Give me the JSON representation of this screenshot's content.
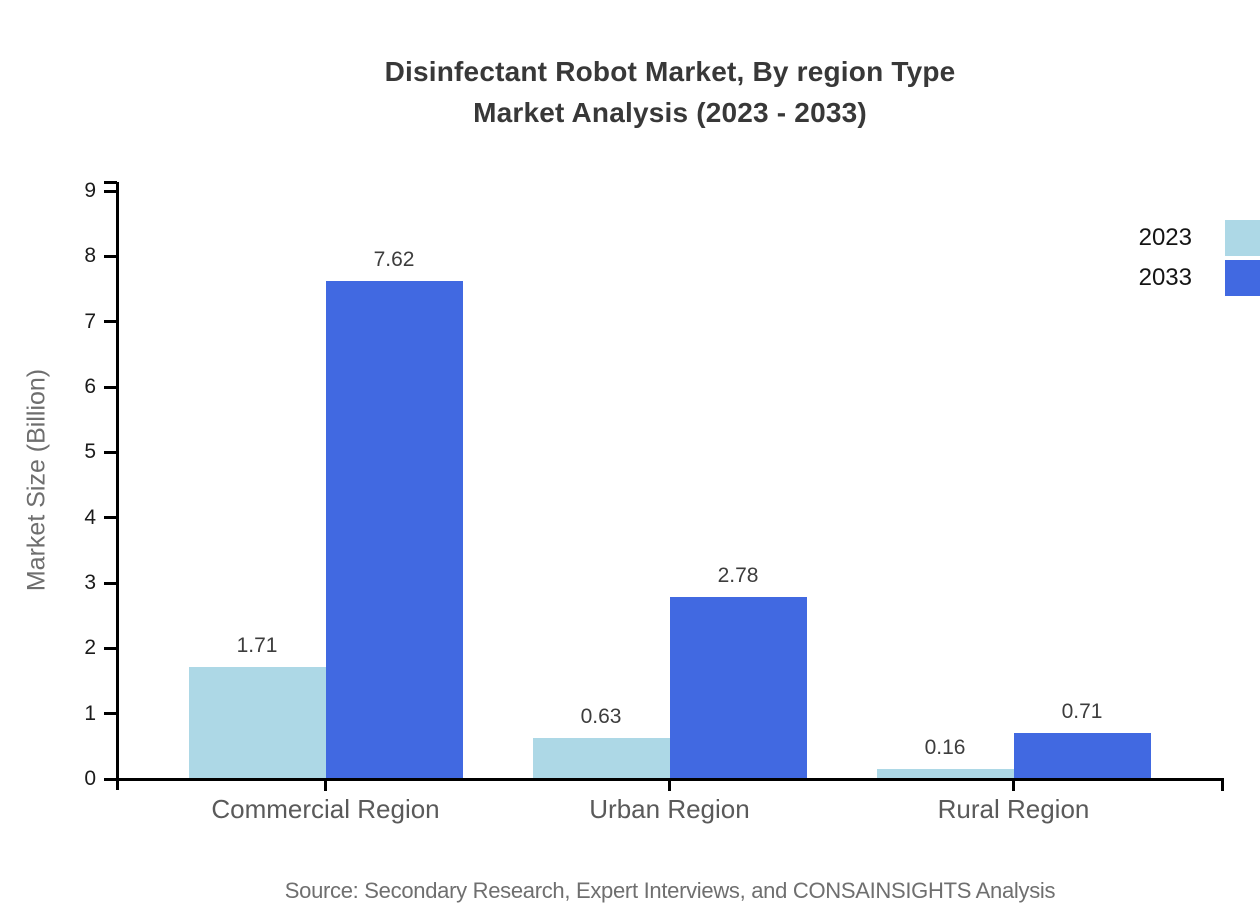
{
  "title": {
    "line1": "Disinfectant Robot Market, By region Type",
    "line2": "Market Analysis (2023 - 2033)"
  },
  "source": "Source: Secondary Research, Expert Interviews, and CONSAINSIGHTS Analysis",
  "colors": {
    "series_2023": "#add8e6",
    "series_2033": "#4169e1",
    "axis": "#000000",
    "title_text": "#383838",
    "category_text": "#5a5a5a",
    "value_text": "#3d3d3d",
    "source_text": "#6f6f6f"
  },
  "chart_data": {
    "type": "bar",
    "title": "Disinfectant Robot Market, By region Type Market Analysis (2023 - 2033)",
    "categories": [
      "Commercial Region",
      "Urban Region",
      "Rural Region"
    ],
    "series": [
      {
        "name": "2023",
        "color": "#add8e6",
        "values": [
          1.71,
          0.63,
          0.16
        ]
      },
      {
        "name": "2033",
        "color": "#4169e1",
        "values": [
          7.62,
          2.78,
          0.71
        ]
      }
    ],
    "value_labels": [
      "1.71",
      "7.62",
      "0.63",
      "2.78",
      "0.16",
      "0.71"
    ],
    "xlabel": "",
    "ylabel": "Market Size (Billion)",
    "ylim": [
      0,
      9.14
    ],
    "yticks": [
      0,
      1,
      2,
      3,
      4,
      5,
      6,
      7,
      8,
      9
    ],
    "grid": false,
    "legend_position": "top-right",
    "legend_entries": [
      "2023",
      "2033"
    ]
  }
}
